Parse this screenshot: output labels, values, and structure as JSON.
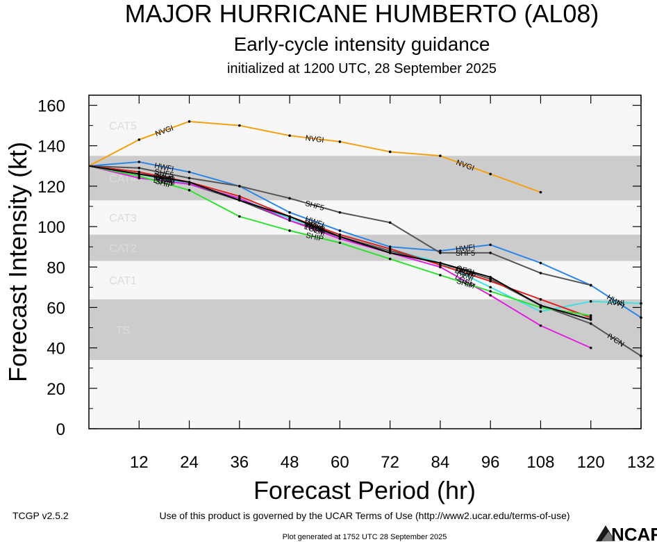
{
  "header": {
    "title": "MAJOR HURRICANE HUMBERTO (AL08)",
    "subtitle": "Early-cycle intensity guidance",
    "initialized": "initialized at 1200 UTC, 28 September 2025"
  },
  "footer": {
    "version": "TCGP v2.5.2",
    "terms": "Use of this product is governed by the UCAR Terms of Use (http://www2.ucar.edu/terms-of-use)",
    "generated": "Plot generated at 1752 UTC   28 September 2025",
    "logo_text": "NCAR"
  },
  "chart_data": {
    "type": "line",
    "xlabel": "Forecast Period (hr)",
    "ylabel": "Forecast Intensity (kt)",
    "xlim": [
      0,
      132
    ],
    "ylim": [
      0,
      165
    ],
    "xticks": [
      12,
      24,
      36,
      48,
      60,
      72,
      84,
      96,
      108,
      120,
      132
    ],
    "yticks": [
      0,
      20,
      40,
      60,
      80,
      100,
      120,
      140,
      160
    ],
    "categories": [
      {
        "name": "TS",
        "min": 34,
        "max": 64,
        "shaded": true
      },
      {
        "name": "CAT1",
        "min": 64,
        "max": 83,
        "shaded": false
      },
      {
        "name": "CAT2",
        "min": 83,
        "max": 96,
        "shaded": true
      },
      {
        "name": "CAT3",
        "min": 96,
        "max": 113,
        "shaded": false
      },
      {
        "name": "CAT4",
        "min": 113,
        "max": 135,
        "shaded": true
      },
      {
        "name": "CAT5",
        "min": 135,
        "max": 165,
        "shaded": false
      }
    ],
    "colors": {
      "band_shaded": "#cccccc",
      "band_light": "#f7f7f7"
    },
    "series": [
      {
        "name": "NVGI",
        "color": "#f5a010",
        "x": [
          0,
          12,
          24,
          36,
          48,
          60,
          72,
          84,
          96,
          108
        ],
        "y": [
          130,
          143,
          152,
          150,
          145,
          142,
          137,
          135,
          126,
          117
        ]
      },
      {
        "name": "HWFI",
        "color": "#2b86e8",
        "x": [
          0,
          12,
          24,
          36,
          48,
          60,
          72,
          84,
          96,
          108,
          120,
          132
        ],
        "y": [
          130,
          132,
          127,
          120,
          107,
          98,
          90,
          88,
          91,
          82,
          71,
          55
        ]
      },
      {
        "name": "SHF5",
        "color": "#555555",
        "x": [
          0,
          12,
          24,
          36,
          48,
          60,
          72,
          84,
          96,
          108,
          120
        ],
        "y": [
          130,
          129,
          124,
          120,
          114,
          107,
          102,
          87,
          87,
          77,
          71
        ]
      },
      {
        "name": "IVCN",
        "color": "#555555",
        "x": [
          0,
          12,
          24,
          36,
          48,
          60,
          72,
          84,
          96,
          108,
          120,
          132
        ],
        "y": [
          130,
          127,
          121,
          113,
          103,
          95,
          88,
          82,
          74,
          61,
          52,
          36
        ]
      },
      {
        "name": "AVNI",
        "color": "#40e0e0",
        "x": [
          0,
          12,
          24,
          36,
          48,
          60,
          72,
          84,
          96,
          108,
          120,
          132
        ],
        "y": [
          130,
          126,
          121,
          114,
          104,
          96,
          89,
          82,
          70,
          58,
          63,
          62
        ]
      },
      {
        "name": "DSHP",
        "color": "#e02020",
        "x": [
          0,
          12,
          24,
          36,
          48,
          60,
          72,
          84,
          96,
          108,
          120
        ],
        "y": [
          130,
          127,
          122,
          115,
          105,
          96,
          89,
          81,
          73,
          64,
          55
        ]
      },
      {
        "name": "LGEM",
        "color": "#e020e0",
        "x": [
          0,
          12,
          24,
          36,
          48,
          60,
          72,
          84,
          96,
          108,
          120
        ],
        "y": [
          130,
          124,
          121,
          114,
          103,
          94,
          87,
          80,
          66,
          51,
          40
        ]
      },
      {
        "name": "SHIP",
        "color": "#30e030",
        "x": [
          0,
          12,
          24,
          36,
          48,
          60,
          72,
          84,
          96,
          108,
          120
        ],
        "y": [
          130,
          125,
          118,
          105,
          98,
          92,
          84,
          76,
          68,
          60,
          56
        ]
      },
      {
        "name": "OFCI",
        "color": "#000000",
        "x": [
          0,
          12,
          24,
          36,
          48,
          60,
          72,
          84,
          96,
          108,
          120
        ],
        "y": [
          130,
          126,
          122,
          113,
          105,
          95,
          87,
          82,
          75,
          61,
          54
        ]
      }
    ]
  }
}
